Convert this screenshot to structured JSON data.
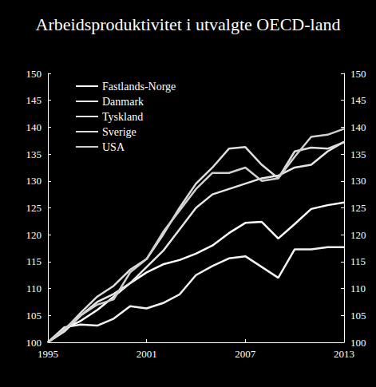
{
  "chart_data": {
    "type": "line",
    "title": "Arbeidsproduktivitet i utvalgte OECD-land",
    "x": [
      1995,
      1996,
      1997,
      1998,
      1999,
      2000,
      2001,
      2002,
      2003,
      2004,
      2005,
      2006,
      2007,
      2008,
      2009,
      2010,
      2011,
      2012,
      2013
    ],
    "xlim": [
      1995,
      2013
    ],
    "xticks": [
      1995,
      2001,
      2007,
      2013
    ],
    "ylim": [
      100,
      150
    ],
    "yticks": [
      100,
      105,
      110,
      115,
      120,
      125,
      130,
      135,
      140,
      145,
      150
    ],
    "y2lim": [
      100,
      150
    ],
    "y2ticks": [
      100,
      105,
      110,
      115,
      120,
      125,
      130,
      135,
      140,
      145,
      150
    ],
    "grid": false,
    "legend": "top-left",
    "series": [
      {
        "name": "Fastlands-Norge",
        "color": "#ffffff",
        "values": [
          100,
          102.5,
          104,
          106,
          108.5,
          111,
          113,
          114.5,
          115.3,
          116.5,
          118,
          120.3,
          122.2,
          122.4,
          119.3,
          122,
          124.8,
          125.5,
          126
        ]
      },
      {
        "name": "Danmark",
        "color": "#f2f2f2",
        "values": [
          100,
          102.8,
          103.3,
          103.1,
          104.4,
          106.7,
          106.3,
          107.3,
          108.9,
          112.5,
          114.2,
          115.6,
          116,
          114,
          112,
          117.3,
          117.3,
          117.7,
          117.7
        ]
      },
      {
        "name": "Tyskland",
        "color": "#e6e6e6",
        "values": [
          100,
          102,
          105,
          107.5,
          109,
          111,
          114,
          117,
          121,
          125,
          127.5,
          128.5,
          129.5,
          130.5,
          131,
          132.5,
          133,
          135.5,
          137.3
        ]
      },
      {
        "name": "Sverige",
        "color": "#dddddd",
        "values": [
          100,
          102.3,
          105.5,
          108.5,
          110.5,
          113.5,
          115.5,
          120,
          125,
          129.5,
          132.5,
          136,
          136.3,
          133,
          130.5,
          135.5,
          136.2,
          136,
          137.2
        ]
      },
      {
        "name": "USA",
        "color": "#d0d0d0",
        "values": [
          100,
          102.5,
          105,
          107,
          108,
          113,
          115.5,
          120.5,
          124.5,
          128.5,
          131.5,
          131.5,
          132.5,
          130,
          130.5,
          134.5,
          138.2,
          138.6,
          139.7
        ]
      }
    ]
  }
}
